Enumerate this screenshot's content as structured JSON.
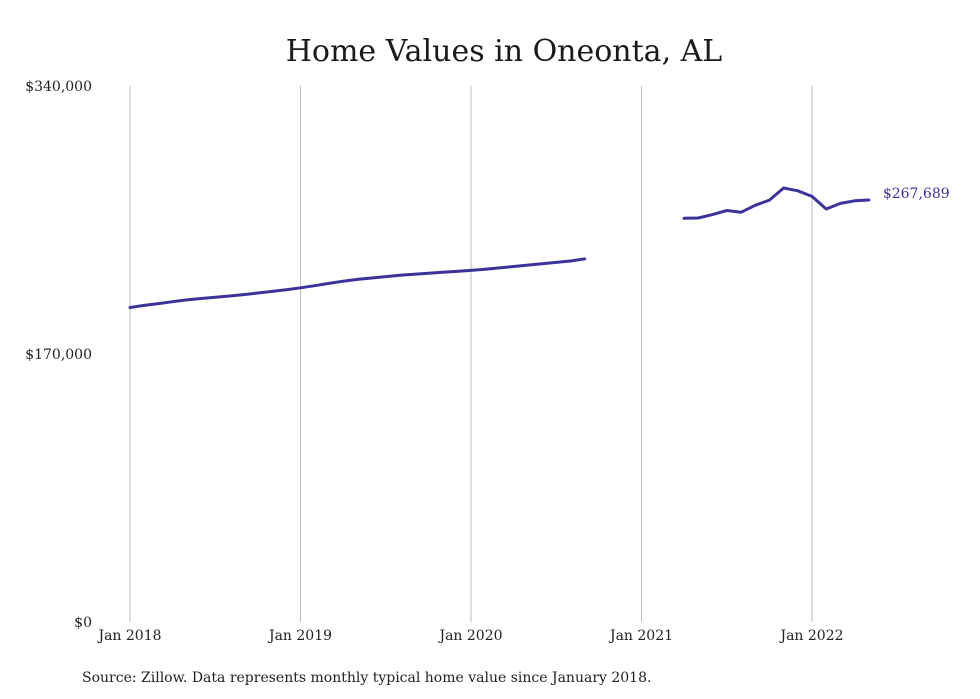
{
  "chart_data": {
    "type": "line",
    "title": "Home Values in Oneonta, AL",
    "xlabel": "",
    "ylabel": "",
    "ylim": [
      0,
      340000
    ],
    "y_ticks": [
      "$340,000",
      "$170,000",
      "$0"
    ],
    "y_tick_values": [
      340000,
      170000,
      0
    ],
    "x_ticks": [
      "Jan 2018",
      "Jan 2019",
      "Jan 2020",
      "Jan 2021",
      "Jan 2022"
    ],
    "x_tick_values": [
      "2018-01",
      "2019-01",
      "2020-01",
      "2021-01",
      "2022-01"
    ],
    "xlim": [
      "2018-01",
      "2022-05"
    ],
    "grid": "vertical",
    "legend": "none",
    "color": "#3b339b",
    "series": [
      {
        "segments": [
          {
            "x": [
              "2018-01",
              "2018-02",
              "2018-03",
              "2018-04",
              "2018-05",
              "2018-06",
              "2018-07",
              "2018-08",
              "2018-09",
              "2018-10",
              "2018-11",
              "2018-12",
              "2019-01",
              "2019-02",
              "2019-03",
              "2019-04",
              "2019-05",
              "2019-06",
              "2019-07",
              "2019-08",
              "2019-09",
              "2019-10",
              "2019-11",
              "2019-12",
              "2020-01",
              "2020-02",
              "2020-03",
              "2020-04",
              "2020-05",
              "2020-06",
              "2020-07",
              "2020-08",
              "2020-09"
            ],
            "y": [
              199500,
              200800,
              202000,
              203200,
              204300,
              205200,
              206000,
              206800,
              207700,
              208700,
              209700,
              210800,
              212000,
              213300,
              214800,
              216200,
              217300,
              218200,
              219100,
              219900,
              220600,
              221200,
              221800,
              222400,
              223000,
              223800,
              224600,
              225500,
              226400,
              227300,
              228100,
              229000,
              230300
            ]
          },
          {
            "x": [
              "2021-04",
              "2021-05",
              "2021-06",
              "2021-07",
              "2021-08",
              "2021-09",
              "2021-10",
              "2021-11",
              "2021-12",
              "2022-01",
              "2022-02",
              "2022-03",
              "2022-04",
              "2022-05"
            ],
            "y": [
              256100,
              256300,
              258400,
              261000,
              259900,
              264300,
              267600,
              275300,
              273500,
              270000,
              262000,
              265500,
              267200,
              267689
            ]
          }
        ]
      }
    ],
    "annotations": [
      {
        "text": "$267,689",
        "x": "2022-05",
        "y": 267689
      }
    ]
  },
  "source_note": "Source: Zillow. Data represents monthly typical home value since January 2018."
}
